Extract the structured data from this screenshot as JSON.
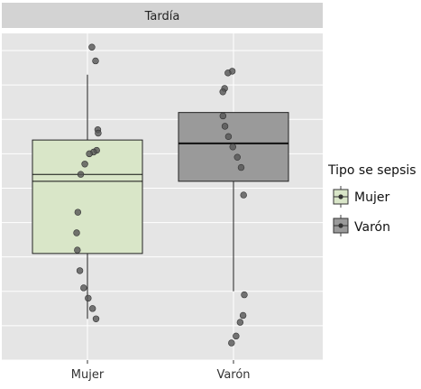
{
  "chart_data": {
    "type": "boxplot",
    "facet_label": "Tardía",
    "categories": [
      "Mujer",
      "Varón"
    ],
    "colors": {
      "Mujer": "#d9e6c8",
      "Varón": "#9a9a9a"
    },
    "boxes": [
      {
        "category": "Mujer",
        "whisker_low": 1.2,
        "q1": 3.1,
        "median": 5.4,
        "mean": 5.2,
        "q3": 6.4,
        "whisker_high": 8.3,
        "points": [
          9.1,
          8.7,
          6.7,
          6.6,
          6.1,
          6.05,
          6.0,
          5.7,
          5.4,
          4.3,
          3.7,
          3.2,
          2.6,
          2.1,
          1.8,
          1.5,
          1.2
        ]
      },
      {
        "category": "Varón",
        "whisker_low": 2.0,
        "q1": 5.2,
        "median": 6.3,
        "mean": 6.3,
        "q3": 7.2,
        "whisker_high": 7.2,
        "points": [
          8.4,
          8.35,
          7.9,
          7.8,
          7.1,
          6.8,
          6.5,
          6.2,
          5.9,
          5.6,
          4.8,
          1.9,
          1.3,
          1.1,
          0.7,
          0.5
        ]
      }
    ],
    "xlabel": "",
    "ylabel": "",
    "ylim": [
      0,
      9.5
    ],
    "grid": true,
    "legend": {
      "title": "Tipo se sepsis",
      "placement": "right",
      "entries": [
        {
          "label": "Mujer",
          "color": "#d9e6c8"
        },
        {
          "label": "Varón",
          "color": "#9a9a9a"
        }
      ]
    }
  }
}
